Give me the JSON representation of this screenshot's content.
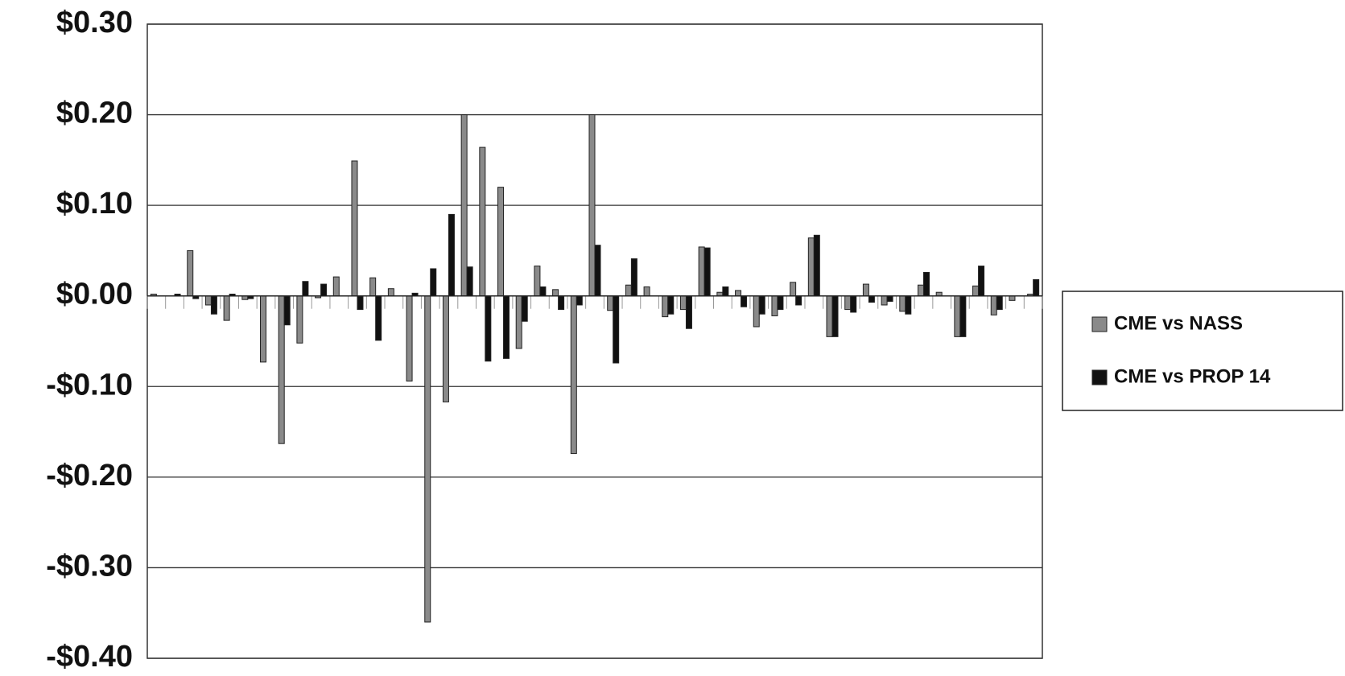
{
  "chart_data": {
    "type": "bar",
    "categories": [
      null,
      null,
      null,
      null,
      null,
      null,
      null,
      null,
      null,
      null,
      null,
      null,
      null,
      null,
      null,
      null,
      null,
      null,
      null,
      null,
      null,
      null,
      null,
      null,
      null,
      null,
      null,
      null,
      null,
      null,
      null,
      null,
      null,
      null,
      null,
      null,
      null,
      null,
      null,
      null,
      null,
      null,
      null,
      null,
      null,
      null,
      null,
      null,
      null
    ],
    "series": [
      {
        "name": "CME vs NASS",
        "color": "#8a8a8a",
        "values": [
          0.002,
          0,
          0.05,
          -0.01,
          -0.027,
          -0.004,
          -0.073,
          -0.163,
          -0.052,
          -0.002,
          0.021,
          0.149,
          0.02,
          0.008,
          -0.094,
          -0.36,
          -0.117,
          0.2,
          0.164,
          0.12,
          -0.058,
          0.033,
          0.007,
          -0.174,
          0.2,
          -0.016,
          0.012,
          0.01,
          -0.023,
          -0.015,
          0.054,
          0.004,
          0.006,
          -0.034,
          -0.022,
          0.015,
          0.064,
          -0.045,
          -0.015,
          0.013,
          -0.01,
          -0.017,
          0.012,
          0.004,
          -0.045,
          0.011,
          -0.021,
          -0.005,
          0.002
        ]
      },
      {
        "name": "CME vs PROP 14",
        "color": "#111111",
        "values": [
          0,
          0.002,
          -0.003,
          -0.02,
          0.002,
          -0.003,
          0,
          -0.032,
          0.016,
          0.013,
          0,
          -0.015,
          -0.049,
          0,
          0.003,
          0.03,
          0.09,
          0.032,
          -0.072,
          -0.069,
          -0.028,
          0.01,
          -0.015,
          -0.01,
          0.056,
          -0.074,
          0.041,
          0,
          -0.02,
          -0.036,
          0.053,
          0.01,
          -0.012,
          -0.02,
          -0.015,
          -0.01,
          0.067,
          -0.045,
          -0.018,
          -0.007,
          -0.006,
          -0.02,
          0.026,
          0,
          -0.045,
          0.033,
          -0.015,
          0,
          0.018
        ]
      }
    ],
    "ylim": [
      -0.4,
      0.3
    ],
    "yticks": [
      {
        "value": -0.4,
        "label": "-$0.40"
      },
      {
        "value": -0.3,
        "label": "-$0.30"
      },
      {
        "value": -0.2,
        "label": "-$0.20"
      },
      {
        "value": -0.1,
        "label": "-$0.10"
      },
      {
        "value": 0,
        "label": "$0.00"
      },
      {
        "value": 0.1,
        "label": "$0.10"
      },
      {
        "value": 0.2,
        "label": "$0.20"
      },
      {
        "value": 0.3,
        "label": "$0.30"
      }
    ],
    "grid": true,
    "legend": "right"
  }
}
